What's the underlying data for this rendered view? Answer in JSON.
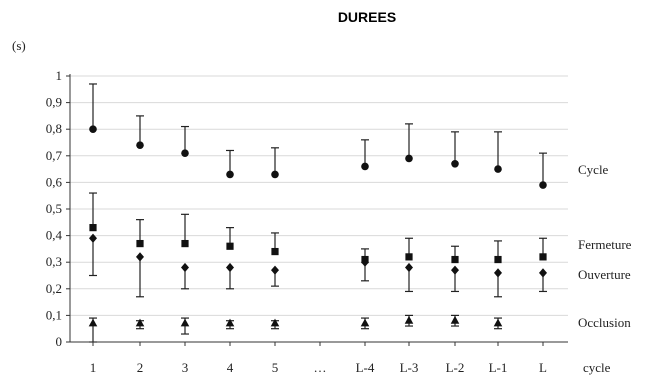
{
  "chart_data": {
    "type": "scatter",
    "title": "DUREES",
    "ylabel": "(s)",
    "xlabel": "cycle",
    "ylim": [
      0,
      1
    ],
    "y_ticks": [
      "0",
      "0,1",
      "0,2",
      "0,3",
      "0,4",
      "0,5",
      "0,6",
      "0,7",
      "0,8",
      "0,9",
      "1"
    ],
    "categories": [
      "1",
      "2",
      "3",
      "4",
      "5",
      "…",
      "L-4",
      "L-3",
      "L-2",
      "L-1",
      "L"
    ],
    "grid": "horizontal",
    "legend_placement": "right",
    "series": [
      {
        "name": "Cycle",
        "marker": "circle",
        "values": [
          0.8,
          0.74,
          0.71,
          0.63,
          0.63,
          null,
          0.66,
          0.69,
          0.67,
          0.65,
          0.59
        ],
        "error_plus": [
          0.17,
          0.11,
          0.1,
          0.09,
          0.1,
          null,
          0.1,
          0.13,
          0.12,
          0.14,
          0.12
        ],
        "error_minus": [
          0,
          0,
          0,
          0,
          0,
          null,
          0,
          0,
          0,
          0,
          0
        ]
      },
      {
        "name": "Fermeture",
        "marker": "square",
        "values": [
          0.43,
          0.37,
          0.37,
          0.36,
          0.34,
          null,
          0.31,
          0.32,
          0.31,
          0.31,
          0.32
        ],
        "error_plus": [
          0.13,
          0.09,
          0.11,
          0.07,
          0.07,
          null,
          0.04,
          0.07,
          0.05,
          0.07,
          0.07
        ],
        "error_minus": [
          0,
          0,
          0,
          0,
          0,
          null,
          0,
          0,
          0,
          0,
          0
        ]
      },
      {
        "name": "Ouverture",
        "marker": "diamond",
        "values": [
          0.39,
          0.32,
          0.28,
          0.28,
          0.27,
          null,
          0.3,
          0.28,
          0.27,
          0.26,
          0.26
        ],
        "error_plus": [
          0,
          0,
          0,
          0,
          0,
          null,
          0,
          0,
          0,
          0,
          0
        ],
        "error_minus": [
          0.14,
          0.15,
          0.08,
          0.08,
          0.06,
          null,
          0.07,
          0.09,
          0.08,
          0.09,
          0.07
        ]
      },
      {
        "name": "Occlusion",
        "marker": "triangle",
        "values": [
          0.07,
          0.07,
          0.07,
          0.07,
          0.07,
          null,
          0.07,
          0.08,
          0.08,
          0.07,
          null
        ],
        "error_plus": [
          0.02,
          0.01,
          0.02,
          0.01,
          0.01,
          null,
          0.02,
          0.02,
          0.02,
          0.02,
          null
        ],
        "error_minus": [
          0.07,
          0.02,
          0.04,
          0.02,
          0.02,
          null,
          0.02,
          0.02,
          0.02,
          0.02,
          null
        ]
      }
    ]
  }
}
